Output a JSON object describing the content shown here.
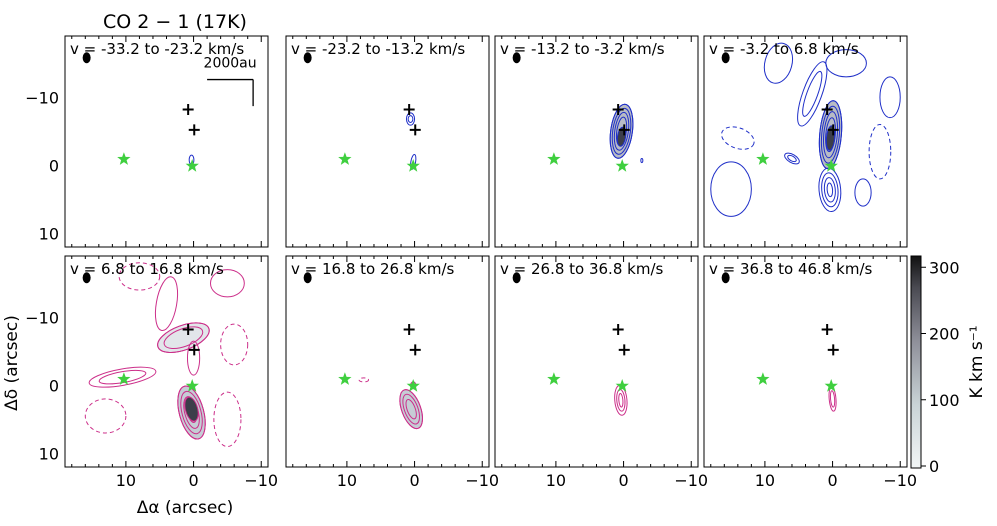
{
  "chart_data": {
    "type": "channel-map-contour",
    "title": "CO 2 − 1 (17K)",
    "xlabel": "Δα (arcsec)",
    "ylabel": "Δδ (arcsec)",
    "xlim": [
      19,
      -11
    ],
    "ylim": [
      -19,
      12
    ],
    "x_ticks": [
      10,
      0,
      -10
    ],
    "x_tick_labels": [
      "10",
      "0",
      "−10"
    ],
    "y_ticks": [
      10,
      0,
      -10
    ],
    "y_tick_labels": [
      "10",
      "0",
      "−10"
    ],
    "scale_bar_label": "2000au",
    "colorbar": {
      "label": "K km s⁻¹",
      "range": [
        0,
        320
      ],
      "ticks": [
        0,
        100,
        200,
        300
      ],
      "tick_labels": [
        "0",
        "100",
        "200",
        "300"
      ]
    },
    "stars": [
      {
        "x": 10.3,
        "y": -0.9
      },
      {
        "x": 0.2,
        "y": 0.1
      }
    ],
    "crosses": [
      {
        "x": -0.1,
        "y": -5.2
      },
      {
        "x": 0.8,
        "y": -8.2
      }
    ],
    "beam": {
      "x": 15.8,
      "y": -15.8
    },
    "panels": [
      {
        "label": "v = -33.2 to -23.2 km/s",
        "wing": "blue",
        "row": 0,
        "col": 0
      },
      {
        "label": "v = -23.2 to -13.2 km/s",
        "wing": "blue",
        "row": 0,
        "col": 1
      },
      {
        "label": "v = -13.2 to -3.2 km/s",
        "wing": "blue",
        "row": 0,
        "col": 2
      },
      {
        "label": "v = -3.2 to 6.8 km/s",
        "wing": "blue",
        "row": 0,
        "col": 3
      },
      {
        "label": "v = 6.8 to 16.8 km/s",
        "wing": "red",
        "row": 1,
        "col": 0
      },
      {
        "label": "v = 16.8 to 26.8 km/s",
        "wing": "red",
        "row": 1,
        "col": 1
      },
      {
        "label": "v = 26.8 to 36.8 km/s",
        "wing": "red",
        "row": 1,
        "col": 2
      },
      {
        "label": "v = 36.8 to 46.8 km/s",
        "wing": "red",
        "row": 1,
        "col": 3
      }
    ],
    "zoom_box": {
      "x": [
        10,
        -10
      ],
      "y": [
        -10,
        9
      ]
    },
    "colors": {
      "blue": "#1f2fc8",
      "red": "#cc2f8a",
      "star": "#3fcf3f"
    }
  }
}
